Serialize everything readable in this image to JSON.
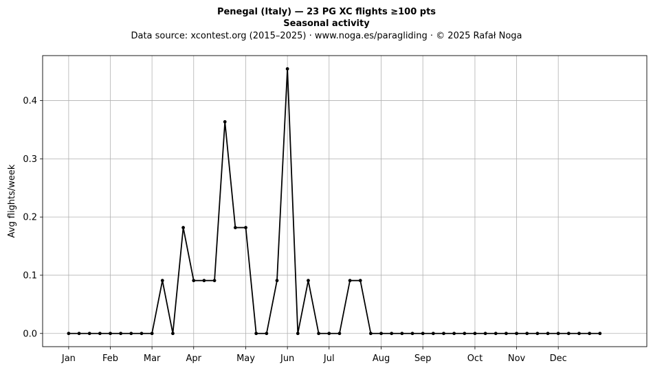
{
  "chart_data": {
    "type": "line",
    "title": "Penegal (Italy)  —  23 PG XC flights ≥100 pts",
    "subtitle": "Seasonal activity",
    "source_line": "Data source: xcontest.org (2015–2025)  ·  www.noga.es/paragliding  ·  © 2025 Rafał Noga",
    "xlabel": "",
    "ylabel": "Avg flights/week",
    "ylim": [
      -0.0227,
      0.4773
    ],
    "xlim": [
      -2.5,
      55.5
    ],
    "grid": true,
    "yticks": [
      0.0,
      0.1,
      0.2,
      0.3,
      0.4
    ],
    "ytick_labels": [
      "0.0",
      "0.1",
      "0.2",
      "0.3",
      "0.4"
    ],
    "xticks": [
      0,
      4,
      8,
      12,
      17,
      21,
      25,
      30,
      34,
      39,
      43,
      47
    ],
    "xtick_labels": [
      "Jan",
      "Feb",
      "Mar",
      "Apr",
      "May",
      "Jun",
      "Jul",
      "Aug",
      "Sep",
      "Oct",
      "Nov",
      "Dec"
    ],
    "series": [
      {
        "color": "#000000",
        "x": [
          0,
          1,
          2,
          3,
          4,
          5,
          6,
          7,
          8,
          9,
          10,
          11,
          12,
          13,
          14,
          15,
          16,
          17,
          18,
          19,
          20,
          21,
          22,
          23,
          24,
          25,
          26,
          27,
          28,
          29,
          30,
          31,
          32,
          33,
          34,
          35,
          36,
          37,
          38,
          39,
          40,
          41,
          42,
          43,
          44,
          45,
          46,
          47,
          48,
          49,
          50,
          51
        ],
        "values": [
          0,
          0,
          0,
          0,
          0,
          0,
          0,
          0,
          0,
          0.0909,
          0,
          0.1818,
          0.0909,
          0.0909,
          0.0909,
          0.3636,
          0.1818,
          0.1818,
          0,
          0,
          0.0909,
          0.4545,
          0,
          0.0909,
          0,
          0,
          0,
          0.0909,
          0.0909,
          0,
          0,
          0,
          0,
          0,
          0,
          0,
          0,
          0,
          0,
          0,
          0,
          0,
          0,
          0,
          0,
          0,
          0,
          0,
          0,
          0,
          0,
          0
        ]
      }
    ]
  }
}
